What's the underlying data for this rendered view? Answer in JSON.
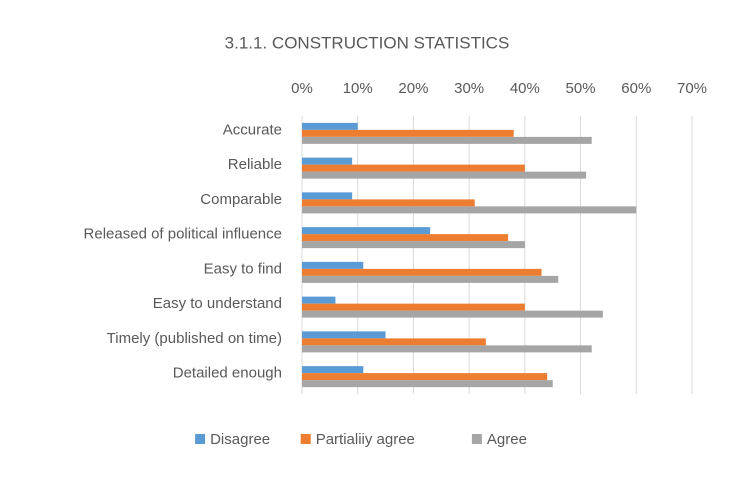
{
  "chart_data": {
    "type": "bar",
    "orientation": "horizontal",
    "title": "3.1.1. CONSTRUCTION STATISTICS",
    "categories": [
      "Accurate",
      "Reliable",
      "Comparable",
      "Released of political influence",
      "Easy to find",
      "Easy to understand",
      "Timely (published on time)",
      "Detailed enough"
    ],
    "series": [
      {
        "name": "Disagree",
        "color": "#5b9bd5",
        "values": [
          10,
          9,
          9,
          23,
          11,
          6,
          15,
          11
        ]
      },
      {
        "name": "Partialiiy agree",
        "color": "#ed7d31",
        "values": [
          38,
          40,
          31,
          37,
          43,
          40,
          33,
          44
        ]
      },
      {
        "name": "Agree",
        "color": "#a5a5a5",
        "values": [
          52,
          51,
          60,
          40,
          46,
          54,
          52,
          45
        ]
      }
    ],
    "xlim": [
      0,
      70
    ],
    "xticks": [
      {
        "value": 0,
        "label": "0%"
      },
      {
        "value": 10,
        "label": "10%"
      },
      {
        "value": 20,
        "label": "20%"
      },
      {
        "value": 30,
        "label": "30%"
      },
      {
        "value": 40,
        "label": "40%"
      },
      {
        "value": 50,
        "label": "50%"
      },
      {
        "value": 60,
        "label": "60%"
      },
      {
        "value": 70,
        "label": "70%"
      }
    ],
    "grid": true,
    "legend": "bottom"
  }
}
